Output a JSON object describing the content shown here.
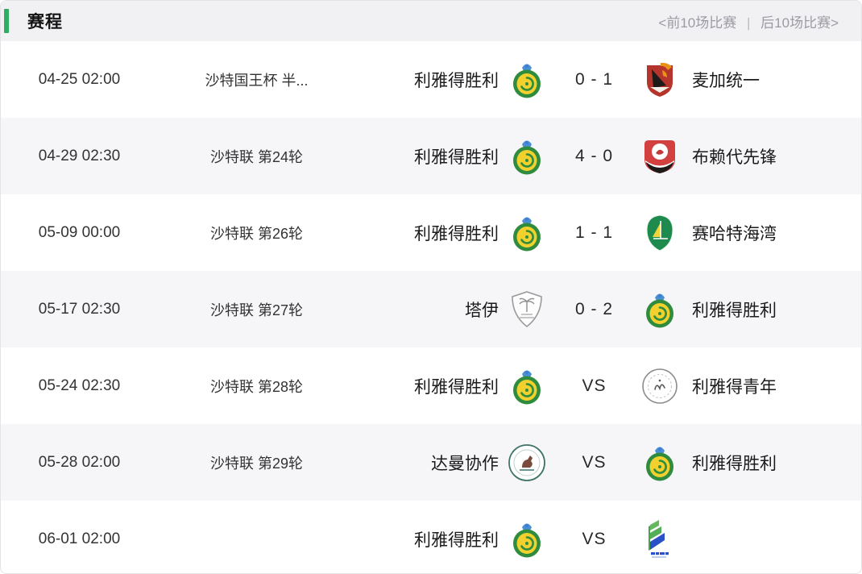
{
  "header": {
    "title": "赛程",
    "pagination": {
      "prev": "<前10场比赛",
      "separator": "|",
      "next": "后10场比赛>"
    }
  },
  "colors": {
    "accent_green": "#2eae60",
    "header_bg": "#f1f1f3",
    "alt_row_bg": "#f6f6f8"
  },
  "matches": [
    {
      "date": "04-25 02:00",
      "league": "沙特国王杯 半...",
      "home": "利雅得胜利",
      "home_logo": "al-nassr",
      "score": "0 - 1",
      "away_logo": "mecca-united",
      "away": "麦加统一"
    },
    {
      "date": "04-29 02:30",
      "league": "沙特联 第24轮",
      "home": "利雅得胜利",
      "home_logo": "al-nassr",
      "score": "4 - 0",
      "away_logo": "al-raed",
      "away": "布赖代先锋"
    },
    {
      "date": "05-09 00:00",
      "league": "沙特联 第26轮",
      "home": "利雅得胜利",
      "home_logo": "al-nassr",
      "score": "1 - 1",
      "away_logo": "al-khaleej",
      "away": "赛哈特海湾"
    },
    {
      "date": "05-17 02:30",
      "league": "沙特联 第27轮",
      "home": "塔伊",
      "home_logo": "al-tai",
      "score": "0 - 2",
      "away_logo": "al-nassr",
      "away": "利雅得胜利"
    },
    {
      "date": "05-24 02:30",
      "league": "沙特联 第28轮",
      "home": "利雅得胜利",
      "home_logo": "al-nassr",
      "score": "VS",
      "away_logo": "al-shabab",
      "away": "利雅得青年"
    },
    {
      "date": "05-28 02:00",
      "league": "沙特联 第29轮",
      "home": "达曼协作",
      "home_logo": "al-ettifaq",
      "score": "VS",
      "away_logo": "al-nassr",
      "away": "利雅得胜利"
    },
    {
      "date": "06-01 02:00",
      "league": "",
      "home": "利雅得胜利",
      "home_logo": "al-nassr",
      "score": "VS",
      "away_logo": "striped-club",
      "away": ""
    }
  ]
}
